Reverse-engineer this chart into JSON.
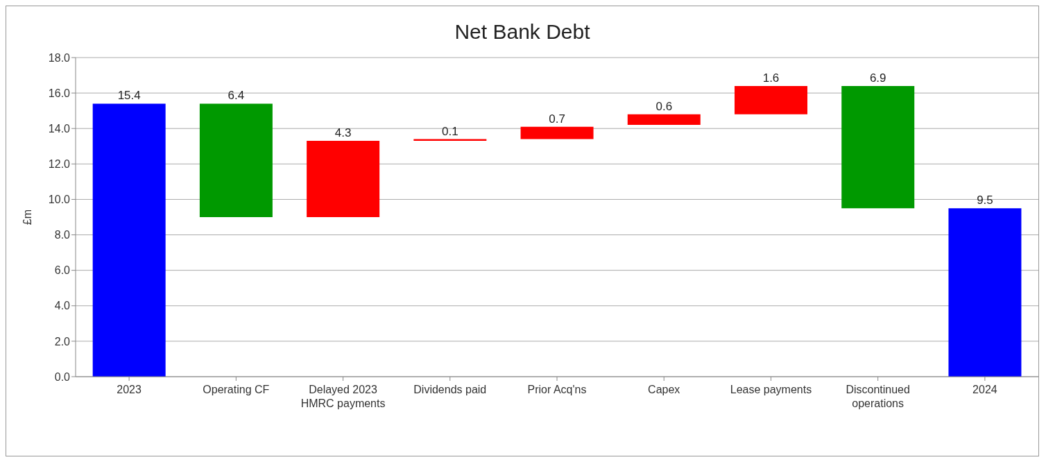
{
  "chart_data": {
    "type": "bar",
    "title": "Net Bank Debt",
    "ylabel": "£m",
    "categories": [
      "2023",
      "Operating CF",
      "Delayed 2023 HMRC payments",
      "Dividends paid",
      "Prior Acq'ns",
      "Capex",
      "Lease payments",
      "Discontinued operations",
      "2024"
    ],
    "values": [
      15.4,
      6.4,
      4.3,
      0.1,
      0.7,
      0.6,
      1.6,
      6.9,
      9.5
    ],
    "base": [
      0,
      9.0,
      9.0,
      13.3,
      13.4,
      14.2,
      14.8,
      9.5,
      0
    ],
    "colors": [
      "#0000ff",
      "#009900",
      "#ff0000",
      "#ff0000",
      "#ff0000",
      "#ff0000",
      "#ff0000",
      "#009900",
      "#0000ff"
    ],
    "ylim": [
      0,
      18
    ],
    "yticks": [
      {
        "value": 0,
        "label": "0.0"
      },
      {
        "value": 2,
        "label": "2.0"
      },
      {
        "value": 4,
        "label": "4.0"
      },
      {
        "value": 6,
        "label": "6.0"
      },
      {
        "value": 8,
        "label": "8.0"
      },
      {
        "value": 10,
        "label": "10.0"
      },
      {
        "value": 12,
        "label": "12.0"
      },
      {
        "value": 14,
        "label": "14.0"
      },
      {
        "value": 16,
        "label": "16.0"
      },
      {
        "value": 18,
        "label": "18.0"
      }
    ],
    "grid": "y",
    "data_labels": true
  }
}
